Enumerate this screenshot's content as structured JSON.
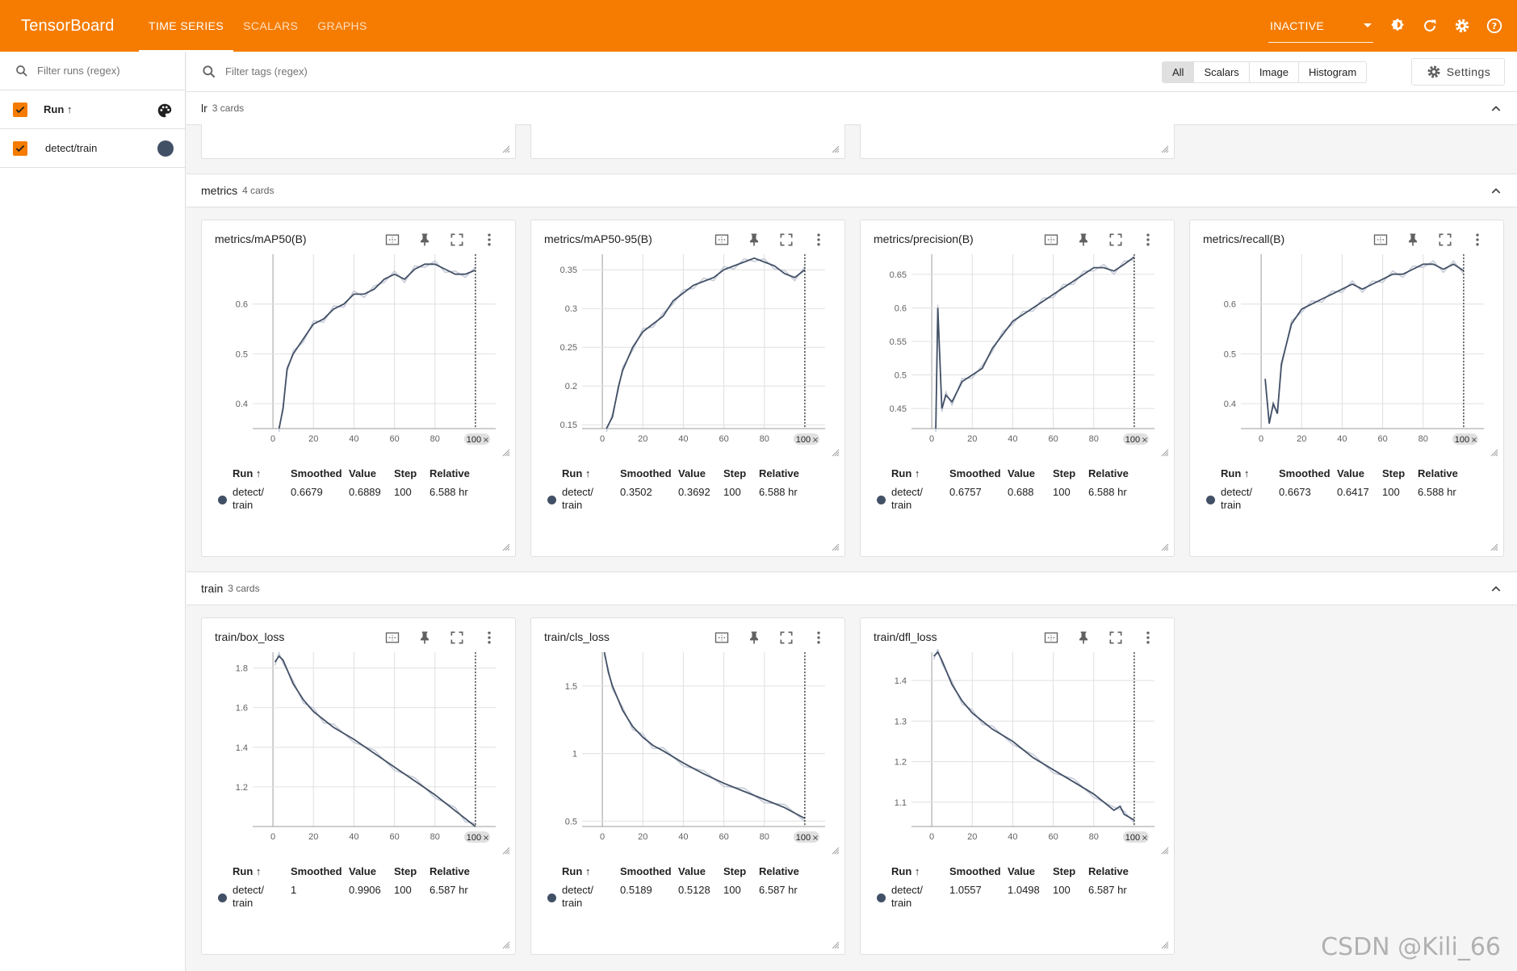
{
  "app": {
    "brand": "TensorBoard",
    "tabs": [
      {
        "label": "TIME SERIES",
        "active": true
      },
      {
        "label": "SCALARS",
        "active": false
      },
      {
        "label": "GRAPHS",
        "active": false
      }
    ],
    "status_select": "INACTIVE",
    "accent_color": "#f57c00"
  },
  "sidebar": {
    "filter_placeholder": "Filter runs (regex)",
    "header_label": "Run ↑",
    "runs": [
      {
        "name": "detect/train",
        "color": "#425066"
      }
    ]
  },
  "toolbar": {
    "filter_placeholder": "Filter tags (regex)",
    "types": [
      "All",
      "Scalars",
      "Image",
      "Histogram"
    ],
    "active_type": "All",
    "settings_label": "Settings"
  },
  "legend_columns": [
    "Run ↑",
    "Smoothed",
    "Value",
    "Step",
    "Relative"
  ],
  "groups": [
    {
      "name": "lr",
      "count": "3 cards",
      "cards": []
    },
    {
      "name": "metrics",
      "count": "4 cards",
      "cards": [
        {
          "title": "metrics/mAP50(B)",
          "run_line1": "detect/",
          "run_line2": "train",
          "smoothed": "0.6679",
          "value": "0.6889",
          "step": "100",
          "relative": "6.588 hr"
        },
        {
          "title": "metrics/mAP50-95(B)",
          "run_line1": "detect/",
          "run_line2": "train",
          "smoothed": "0.3502",
          "value": "0.3692",
          "step": "100",
          "relative": "6.588 hr"
        },
        {
          "title": "metrics/precision(B)",
          "run_line1": "detect/",
          "run_line2": "train",
          "smoothed": "0.6757",
          "value": "0.688",
          "step": "100",
          "relative": "6.588 hr"
        },
        {
          "title": "metrics/recall(B)",
          "run_line1": "detect/",
          "run_line2": "train",
          "smoothed": "0.6673",
          "value": "0.6417",
          "step": "100",
          "relative": "6.588 hr"
        }
      ]
    },
    {
      "name": "train",
      "count": "3 cards",
      "cards": [
        {
          "title": "train/box_loss",
          "run_line1": "detect/",
          "run_line2": "train",
          "smoothed": "1",
          "value": "0.9906",
          "step": "100",
          "relative": "6.587 hr"
        },
        {
          "title": "train/cls_loss",
          "run_line1": "detect/",
          "run_line2": "train",
          "smoothed": "0.5189",
          "value": "0.5128",
          "step": "100",
          "relative": "6.587 hr"
        },
        {
          "title": "train/dfl_loss",
          "run_line1": "detect/",
          "run_line2": "train",
          "smoothed": "1.0557",
          "value": "1.0498",
          "step": "100",
          "relative": "6.587 hr"
        }
      ]
    }
  ],
  "chart_data": [
    {
      "type": "line",
      "title": "metrics/mAP50(B)",
      "xlim": [
        -10,
        110
      ],
      "ylim": [
        0.35,
        0.7
      ],
      "xticks": [
        0,
        20,
        40,
        60,
        80
      ],
      "yticks": [
        0.4,
        0.5,
        0.6
      ],
      "ytick_labels": [
        "0.4",
        "0.5",
        "0.6"
      ],
      "step_marker": "100",
      "series": [
        {
          "x": [
            3,
            5,
            7,
            10,
            15,
            20,
            25,
            30,
            35,
            40,
            45,
            50,
            55,
            60,
            65,
            70,
            75,
            80,
            85,
            90,
            95,
            100
          ],
          "values": [
            0.35,
            0.39,
            0.47,
            0.5,
            0.53,
            0.56,
            0.57,
            0.59,
            0.6,
            0.62,
            0.62,
            0.63,
            0.65,
            0.66,
            0.65,
            0.67,
            0.68,
            0.68,
            0.67,
            0.66,
            0.66,
            0.668
          ]
        }
      ]
    },
    {
      "type": "line",
      "title": "metrics/mAP50-95(B)",
      "xlim": [
        -10,
        110
      ],
      "ylim": [
        0.145,
        0.37
      ],
      "xticks": [
        0,
        20,
        40,
        60,
        80
      ],
      "yticks": [
        0.15,
        0.2,
        0.25,
        0.3,
        0.35
      ],
      "ytick_labels": [
        "0.15",
        "0.2",
        "0.25",
        "0.3",
        "0.35"
      ],
      "step_marker": "100",
      "series": [
        {
          "x": [
            2,
            5,
            8,
            10,
            15,
            20,
            25,
            30,
            35,
            40,
            45,
            50,
            55,
            60,
            65,
            70,
            75,
            80,
            85,
            90,
            95,
            100
          ],
          "values": [
            0.145,
            0.16,
            0.2,
            0.22,
            0.25,
            0.27,
            0.28,
            0.29,
            0.31,
            0.32,
            0.33,
            0.335,
            0.34,
            0.35,
            0.355,
            0.36,
            0.365,
            0.36,
            0.355,
            0.345,
            0.34,
            0.35
          ]
        }
      ]
    },
    {
      "type": "line",
      "title": "metrics/precision(B)",
      "xlim": [
        -10,
        110
      ],
      "ylim": [
        0.42,
        0.68
      ],
      "xticks": [
        0,
        20,
        40,
        60,
        80
      ],
      "yticks": [
        0.45,
        0.5,
        0.55,
        0.6,
        0.65
      ],
      "ytick_labels": [
        "0.45",
        "0.5",
        "0.55",
        "0.6",
        "0.65"
      ],
      "step_marker": "100",
      "series": [
        {
          "x": [
            2,
            3,
            5,
            7,
            10,
            15,
            20,
            25,
            30,
            35,
            40,
            45,
            50,
            55,
            60,
            65,
            70,
            75,
            80,
            85,
            90,
            95,
            100
          ],
          "values": [
            0.42,
            0.6,
            0.45,
            0.47,
            0.46,
            0.49,
            0.5,
            0.51,
            0.54,
            0.56,
            0.58,
            0.59,
            0.6,
            0.61,
            0.62,
            0.63,
            0.64,
            0.65,
            0.66,
            0.66,
            0.655,
            0.665,
            0.676
          ]
        }
      ]
    },
    {
      "type": "line",
      "title": "metrics/recall(B)",
      "xlim": [
        -10,
        110
      ],
      "ylim": [
        0.35,
        0.7
      ],
      "xticks": [
        0,
        20,
        40,
        60,
        80
      ],
      "yticks": [
        0.4,
        0.5,
        0.6
      ],
      "ytick_labels": [
        "0.4",
        "0.5",
        "0.6"
      ],
      "step_marker": "100",
      "series": [
        {
          "x": [
            2,
            4,
            6,
            8,
            10,
            15,
            20,
            25,
            30,
            35,
            40,
            45,
            50,
            55,
            60,
            65,
            70,
            75,
            80,
            85,
            90,
            95,
            100
          ],
          "values": [
            0.45,
            0.36,
            0.4,
            0.38,
            0.48,
            0.56,
            0.59,
            0.6,
            0.61,
            0.62,
            0.63,
            0.64,
            0.63,
            0.64,
            0.65,
            0.66,
            0.66,
            0.67,
            0.68,
            0.68,
            0.67,
            0.68,
            0.667
          ]
        }
      ]
    },
    {
      "type": "line",
      "title": "train/box_loss",
      "xlim": [
        -10,
        110
      ],
      "ylim": [
        1.0,
        1.88
      ],
      "xticks": [
        0,
        20,
        40,
        60,
        80
      ],
      "yticks": [
        1.2,
        1.4,
        1.6,
        1.8
      ],
      "ytick_labels": [
        "1.2",
        "1.4",
        "1.6",
        "1.8"
      ],
      "step_marker": "100",
      "series": [
        {
          "x": [
            1,
            3,
            5,
            10,
            15,
            20,
            25,
            30,
            40,
            50,
            60,
            70,
            80,
            90,
            95,
            100
          ],
          "values": [
            1.83,
            1.86,
            1.84,
            1.72,
            1.64,
            1.58,
            1.54,
            1.5,
            1.44,
            1.37,
            1.3,
            1.23,
            1.16,
            1.08,
            1.04,
            1.0
          ]
        }
      ]
    },
    {
      "type": "line",
      "title": "train/cls_loss",
      "xlim": [
        -10,
        110
      ],
      "ylim": [
        0.46,
        1.75
      ],
      "xticks": [
        0,
        20,
        40,
        60,
        80
      ],
      "yticks": [
        0.5,
        1.0,
        1.5
      ],
      "ytick_labels": [
        "0.5",
        "1",
        "1.5"
      ],
      "step_marker": "100",
      "series": [
        {
          "x": [
            1,
            3,
            5,
            10,
            15,
            20,
            25,
            30,
            40,
            50,
            60,
            70,
            80,
            90,
            100
          ],
          "values": [
            1.75,
            1.6,
            1.5,
            1.32,
            1.2,
            1.12,
            1.06,
            1.02,
            0.93,
            0.85,
            0.78,
            0.72,
            0.66,
            0.6,
            0.52
          ]
        }
      ]
    },
    {
      "type": "line",
      "title": "train/dfl_loss",
      "xlim": [
        -10,
        110
      ],
      "ylim": [
        1.04,
        1.47
      ],
      "xticks": [
        0,
        20,
        40,
        60,
        80
      ],
      "yticks": [
        1.1,
        1.2,
        1.3,
        1.4
      ],
      "ytick_labels": [
        "1.1",
        "1.2",
        "1.3",
        "1.4"
      ],
      "step_marker": "100",
      "series": [
        {
          "x": [
            1,
            3,
            5,
            10,
            15,
            20,
            25,
            30,
            40,
            50,
            60,
            70,
            80,
            90,
            93,
            95,
            100
          ],
          "values": [
            1.46,
            1.47,
            1.45,
            1.39,
            1.35,
            1.32,
            1.3,
            1.28,
            1.25,
            1.21,
            1.18,
            1.15,
            1.12,
            1.08,
            1.09,
            1.07,
            1.056
          ]
        }
      ]
    }
  ],
  "watermark": "CSDN @Kili_66"
}
